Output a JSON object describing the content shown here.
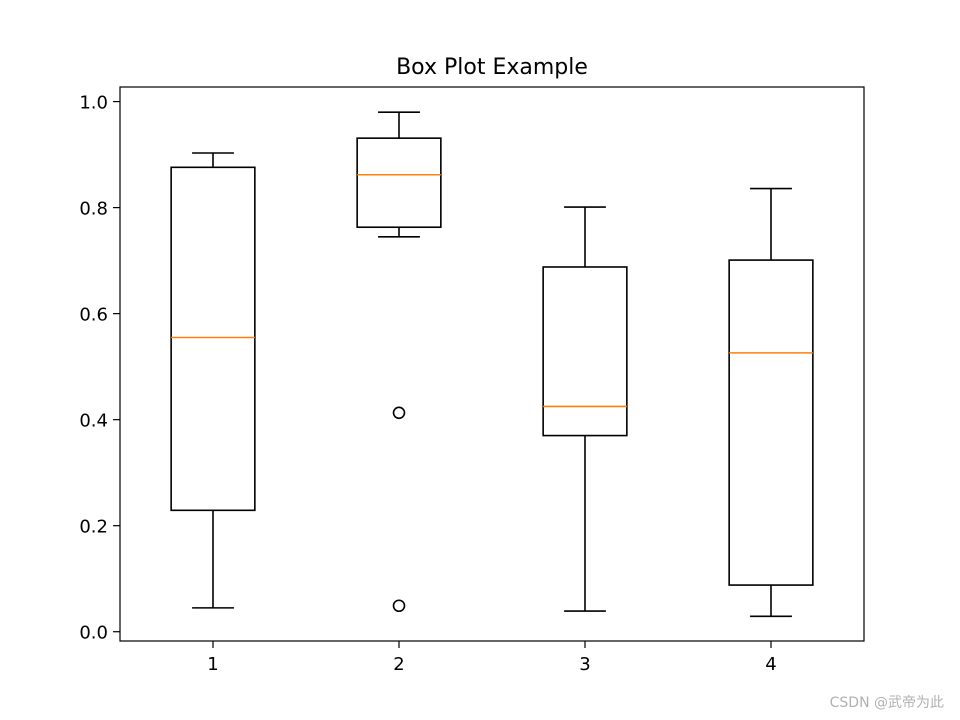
{
  "chart_data": {
    "type": "box",
    "title": "Box Plot Example",
    "xlabel": "",
    "ylabel": "",
    "categories": [
      "1",
      "2",
      "3",
      "4"
    ],
    "boxes": [
      {
        "name": "1",
        "whisker_low": 0.045,
        "q1": 0.229,
        "median": 0.555,
        "q3": 0.876,
        "whisker_high": 0.903,
        "outliers": []
      },
      {
        "name": "2",
        "whisker_low": 0.745,
        "q1": 0.763,
        "median": 0.862,
        "q3": 0.931,
        "whisker_high": 0.98,
        "outliers": [
          0.413,
          0.049
        ]
      },
      {
        "name": "3",
        "whisker_low": 0.039,
        "q1": 0.37,
        "median": 0.425,
        "q3": 0.688,
        "whisker_high": 0.801,
        "outliers": []
      },
      {
        "name": "4",
        "whisker_low": 0.029,
        "q1": 0.088,
        "median": 0.526,
        "q3": 0.701,
        "whisker_high": 0.836,
        "outliers": []
      }
    ],
    "yticks": [
      "0.0",
      "0.2",
      "0.4",
      "0.6",
      "0.8",
      "1.0"
    ],
    "ylim": [
      -0.0175,
      1.0275
    ],
    "grid": false,
    "colors": {
      "box": "#000000",
      "median": "#ff7f0e"
    }
  },
  "watermark": "CSDN @武帝为此"
}
